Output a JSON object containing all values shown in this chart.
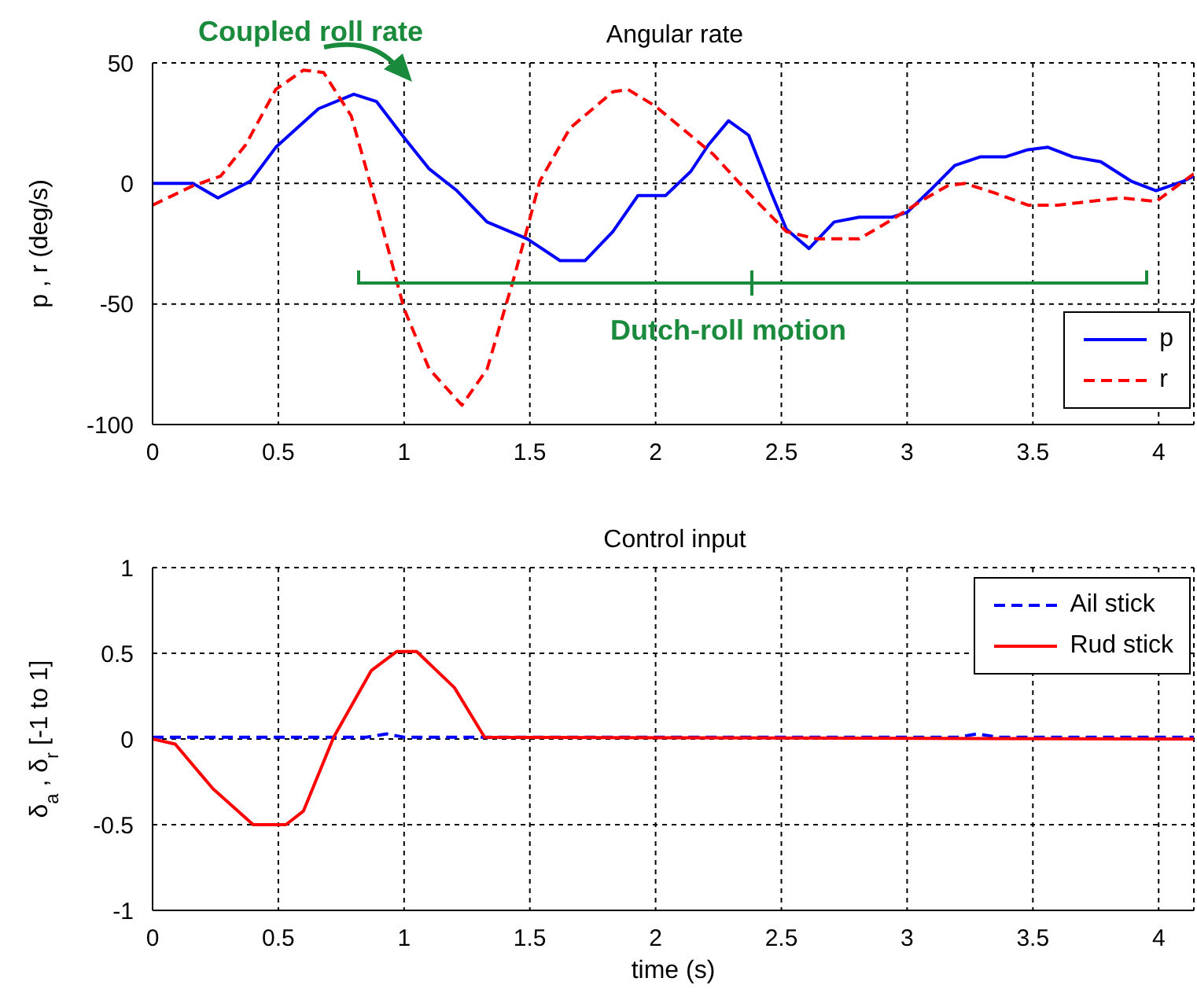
{
  "chart_data": [
    {
      "type": "line",
      "title": "Angular rate",
      "ylabel": "p , r (deg/s)",
      "xlim": [
        0,
        4.14
      ],
      "xticks": [
        0,
        0.5,
        1,
        1.5,
        2,
        2.5,
        3,
        3.5,
        4
      ],
      "ylim": [
        -100,
        50
      ],
      "yticks": [
        -100,
        -50,
        0,
        50
      ],
      "grid": true,
      "legend": "bottom right",
      "annotations": [
        "Coupled roll rate",
        "Dutch-roll motion"
      ],
      "series": [
        {
          "name": "p",
          "color": "#0000ff",
          "line_style": "solid",
          "x": [
            0,
            0.16,
            0.26,
            0.39,
            0.49,
            0.66,
            0.8,
            0.89,
            1.0,
            1.1,
            1.21,
            1.33,
            1.49,
            1.62,
            1.72,
            1.83,
            1.93,
            2.04,
            2.14,
            2.21,
            2.29,
            2.37,
            2.46,
            2.52,
            2.61,
            2.71,
            2.81,
            2.94,
            3.0,
            3.1,
            3.19,
            3.29,
            3.39,
            3.48,
            3.56,
            3.66,
            3.77,
            3.89,
            3.99,
            4.1,
            4.14
          ],
          "values": [
            0,
            0,
            -6,
            1,
            15,
            31,
            37,
            34,
            19,
            6,
            -3,
            -16,
            -23,
            -32,
            -32,
            -20,
            -5,
            -5,
            5,
            16,
            26,
            20,
            -4,
            -19,
            -27,
            -16,
            -14,
            -14,
            -12,
            -2,
            7.5,
            11,
            11,
            14,
            15,
            11,
            9,
            1,
            -3,
            1,
            3
          ]
        },
        {
          "name": "r",
          "color": "#ff0000",
          "line_style": "dashed",
          "x": [
            0,
            0.16,
            0.27,
            0.37,
            0.49,
            0.6,
            0.68,
            0.79,
            0.89,
            1.0,
            1.1,
            1.23,
            1.33,
            1.44,
            1.54,
            1.66,
            1.83,
            1.89,
            2.0,
            2.23,
            2.37,
            2.52,
            2.64,
            2.81,
            2.94,
            3.06,
            3.16,
            3.23,
            3.35,
            3.48,
            3.6,
            3.85,
            3.99,
            4.1,
            4.14
          ],
          "values": [
            -9,
            -1,
            3,
            16,
            39,
            47,
            46,
            28,
            -9,
            -52,
            -77,
            -92,
            -77,
            -38,
            1,
            23,
            38,
            39,
            32,
            12,
            -4,
            -20,
            -23,
            -23,
            -15,
            -7,
            -1,
            0,
            -4,
            -9,
            -9,
            -6,
            -7.5,
            1,
            4
          ]
        }
      ]
    },
    {
      "type": "line",
      "title": "Control input",
      "xlabel": "time (s)",
      "ylabel": "δ$_{a}$ , δ$_{r}$ [-1 to 1]",
      "xlim": [
        0,
        4.14
      ],
      "xticks": [
        0,
        0.5,
        1,
        1.5,
        2,
        2.5,
        3,
        3.5,
        4
      ],
      "ylim": [
        -1,
        1
      ],
      "yticks": [
        -1,
        -0.5,
        0,
        0.5,
        1
      ],
      "grid": true,
      "legend": "top right",
      "series": [
        {
          "name": "Ail stick",
          "color": "#0000ff",
          "line_style": "dashed",
          "x": [
            0,
            0.85,
            0.93,
            1.0,
            3.2,
            3.28,
            3.36,
            4.14
          ],
          "values": [
            0.01,
            0.01,
            0.03,
            0.01,
            0.01,
            0.03,
            0.01,
            0.01
          ]
        },
        {
          "name": "Rud stick",
          "color": "#ff0000",
          "line_style": "solid",
          "x": [
            0,
            0.09,
            0.24,
            0.4,
            0.53,
            0.6,
            0.72,
            0.87,
            0.97,
            1.05,
            1.2,
            1.32,
            4.14
          ],
          "values": [
            0,
            -0.03,
            -0.29,
            -0.5,
            -0.5,
            -0.42,
            0.01,
            0.4,
            0.51,
            0.51,
            0.3,
            0.01,
            0
          ]
        }
      ]
    }
  ]
}
